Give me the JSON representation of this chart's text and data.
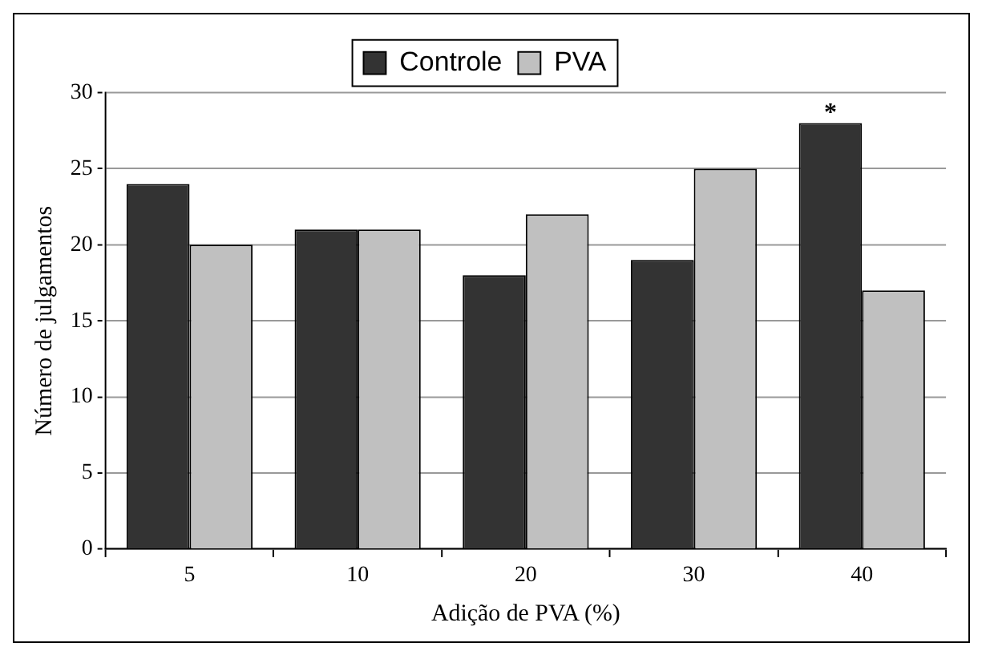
{
  "chart_data": {
    "type": "bar",
    "xlabel": "Adição de PVA (%)",
    "ylabel": "Número de julgamentos",
    "categories": [
      "5",
      "10",
      "20",
      "30",
      "40"
    ],
    "series": [
      {
        "name": "Controle",
        "color": "#333333",
        "values": [
          24,
          21,
          18,
          19,
          28
        ]
      },
      {
        "name": "PVA",
        "color": "#c0c0c0",
        "values": [
          20,
          21,
          22,
          25,
          17
        ]
      }
    ],
    "ylim": [
      0,
      30
    ],
    "yticks": [
      0,
      5,
      10,
      15,
      20,
      25,
      30
    ],
    "grid": "y",
    "legend": "top",
    "annotations": [
      {
        "text": "*",
        "x": "40",
        "y": 28
      }
    ]
  }
}
